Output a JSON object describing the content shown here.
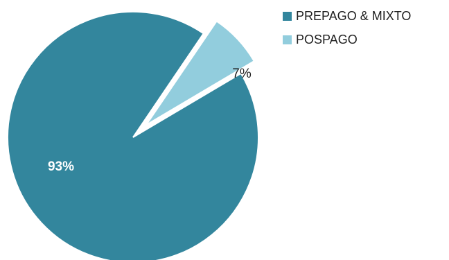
{
  "chart_data": {
    "type": "pie",
    "title": "",
    "slices": [
      {
        "label": "PREPAGO & MIXTO",
        "value": 93,
        "display": "93%",
        "color": "#33869d",
        "label_color": "#ffffff",
        "exploded": false
      },
      {
        "label": "POSPAGO",
        "value": 7,
        "display": "7%",
        "color": "#92cddd",
        "label_color": "#1f1f1f",
        "exploded": true
      }
    ],
    "legend": {
      "position": "top-right",
      "items": [
        {
          "label": "PREPAGO & MIXTO",
          "color": "#33869d"
        },
        {
          "label": "POSPAGO",
          "color": "#92cddd"
        }
      ]
    }
  }
}
